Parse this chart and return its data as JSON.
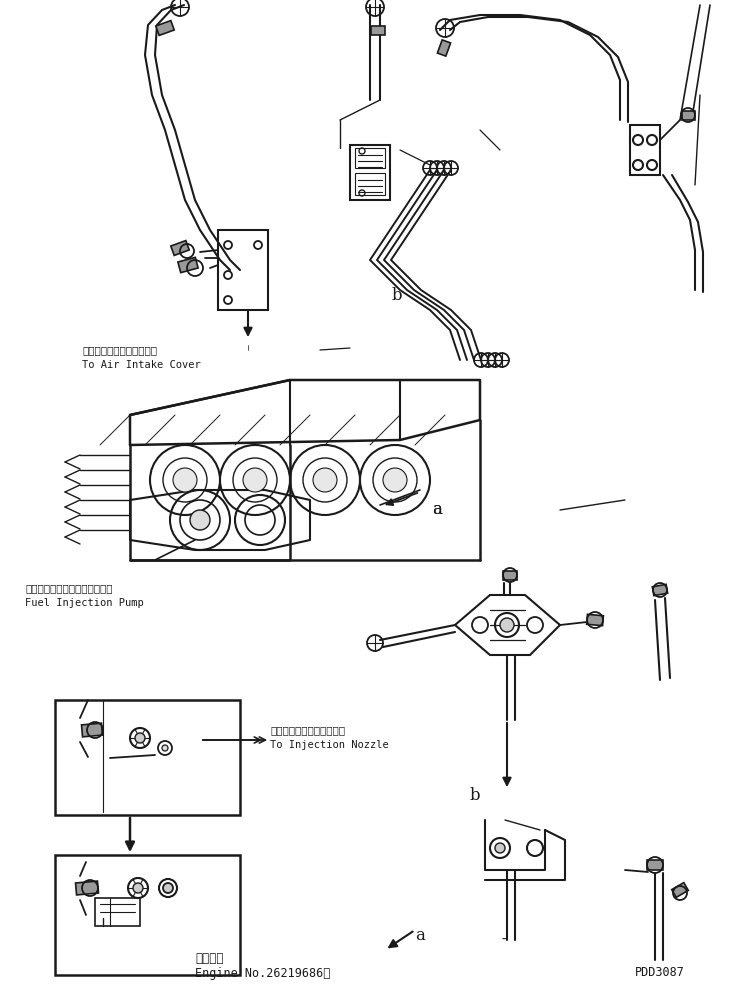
{
  "bg_color": "#ffffff",
  "line_color": "#1a1a1a",
  "bottom_left_text1": "適用号機",
  "bottom_left_text2": "Engine No.26219686～",
  "bottom_right_text": "PDD3087",
  "annotation1_jp": "エアーインテークカバーへ",
  "annotation1_en": "To Air Intake Cover",
  "annotation2_jp": "フェルインジェクションポンプ",
  "annotation2_en": "Fuel Injection Pump",
  "annotation3_jp": "インジェクションノズルへ",
  "annotation3_en": "To Injection Nozzle",
  "fig_width": 7.32,
  "fig_height": 9.99,
  "dpi": 100
}
